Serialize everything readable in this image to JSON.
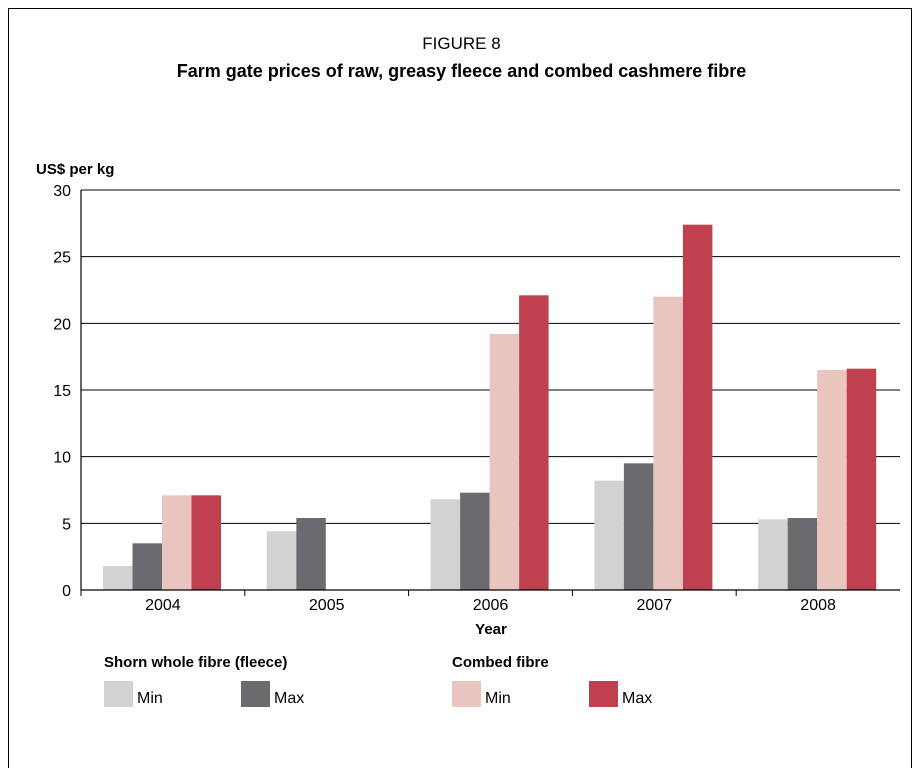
{
  "figure": {
    "label": "FIGURE 8",
    "title": "Farm gate prices of raw, greasy fleece and combed cashmere fibre"
  },
  "chart_data": {
    "type": "bar",
    "ylabel": "US$ per kg",
    "xlabel": "Year",
    "ylim": [
      0,
      30
    ],
    "yticks": [
      0,
      5,
      10,
      15,
      20,
      25,
      30
    ],
    "grid": true,
    "categories": [
      "2004",
      "2005",
      "2006",
      "2007",
      "2008"
    ],
    "series": [
      {
        "group": "Shorn whole fibre (fleece)",
        "name": "Min",
        "color": "#d2d2d3",
        "values": [
          1.8,
          4.4,
          6.8,
          8.2,
          5.3
        ]
      },
      {
        "group": "Shorn whole fibre (fleece)",
        "name": "Max",
        "color": "#6b6b6f",
        "values": [
          3.5,
          5.4,
          7.3,
          9.5,
          5.4
        ]
      },
      {
        "group": "Combed fibre",
        "name": "Min",
        "color": "#eac4be",
        "values": [
          7.1,
          null,
          19.2,
          22.0,
          16.5
        ]
      },
      {
        "group": "Combed fibre",
        "name": "Max",
        "color": "#bf4150",
        "values": [
          7.1,
          null,
          22.1,
          27.4,
          16.6
        ]
      }
    ],
    "legend": {
      "placement": "bottom",
      "groups": [
        {
          "title": "Shorn whole fibre (fleece)",
          "series": [
            0,
            1
          ]
        },
        {
          "title": "Combed fibre",
          "series": [
            2,
            3
          ]
        }
      ]
    }
  }
}
